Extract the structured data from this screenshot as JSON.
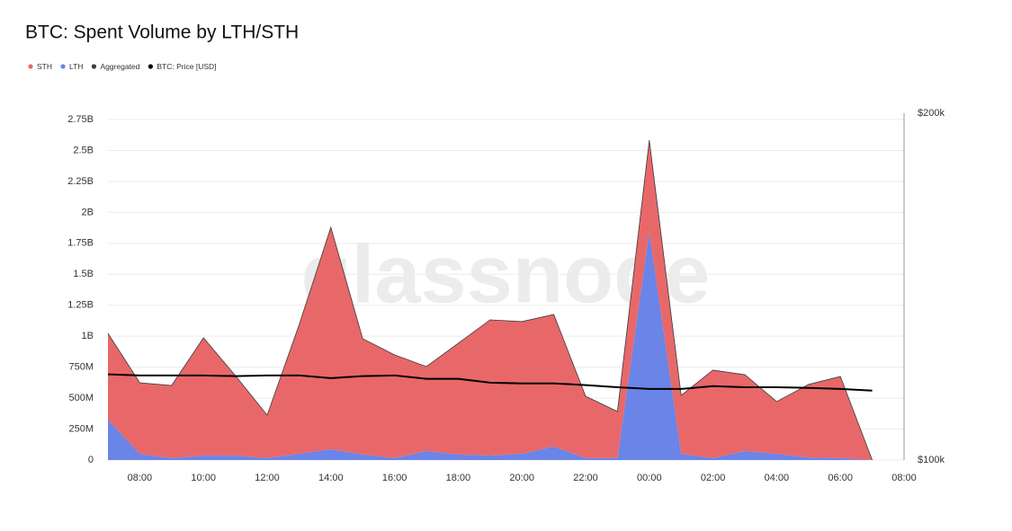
{
  "chart_data": {
    "type": "stacked-area",
    "title": "BTC: Spent Volume by LTH/STH",
    "watermark": "glassnode",
    "categories": [
      null,
      "08:00",
      null,
      "10:00",
      null,
      "12:00",
      null,
      "14:00",
      null,
      "16:00",
      null,
      "18:00",
      null,
      "20:00",
      null,
      "22:00",
      null,
      "00:00",
      null,
      "02:00",
      null,
      "04:00",
      null,
      "06:00",
      null,
      "08:00"
    ],
    "stacked": true,
    "grid": true,
    "legend": "top-left",
    "series": [
      {
        "name": "STH",
        "color": "#e8686a",
        "values": [
          696000000,
          574000000,
          587000000,
          952000000,
          647000000,
          348000000,
          1039000000,
          1792000000,
          936000000,
          834000000,
          682000000,
          899000000,
          1096000000,
          1068000000,
          1067000000,
          500000000,
          377000000,
          740000000,
          472000000,
          711000000,
          616000000,
          422000000,
          590000000,
          660000000,
          0,
          null
        ]
      },
      {
        "name": "LTH",
        "color": "#6a84e8",
        "values": [
          327000000,
          50000000,
          15000000,
          35000000,
          35000000,
          15000000,
          50000000,
          87000000,
          44000000,
          15000000,
          73000000,
          44000000,
          36000000,
          50000000,
          109000000,
          15000000,
          15000000,
          1843000000,
          50000000,
          15000000,
          73000000,
          50000000,
          20000000,
          15000000,
          0,
          null
        ]
      },
      {
        "name": "Aggregated",
        "color": "#3c3c3c"
      },
      {
        "name": "BTC: Price [USD]",
        "color": "#000000",
        "axis": "y2",
        "values": [
          124700,
          124400,
          124400,
          124400,
          124200,
          124400,
          124400,
          123600,
          124200,
          124400,
          123400,
          123400,
          122300,
          122100,
          122100,
          121600,
          121000,
          120500,
          120500,
          121300,
          121000,
          121000,
          120800,
          120500,
          120000,
          null
        ]
      }
    ],
    "ylim": [
      0,
      2750000000
    ],
    "yticks": [
      0,
      {
        "value": 250000000,
        "label": "250M"
      },
      {
        "value": 500000000,
        "label": "500M"
      },
      {
        "value": 750000000,
        "label": "750M"
      },
      {
        "value": 1000000000,
        "label": "1B"
      },
      {
        "value": 1250000000,
        "label": "1.25B"
      },
      {
        "value": 1500000000,
        "label": "1.5B"
      },
      {
        "value": 1750000000,
        "label": "1.75B"
      },
      {
        "value": 2000000000,
        "label": "2B"
      },
      {
        "value": 2250000000,
        "label": "2.25B"
      },
      {
        "value": 2500000000,
        "label": "2.5B"
      },
      {
        "value": 2750000000,
        "label": "2.75B"
      }
    ],
    "y2lim": [
      100000,
      200000
    ],
    "y2ticks": [
      {
        "value": 100000,
        "label": "$100k"
      },
      {
        "value": 200000,
        "label": "$200k"
      }
    ]
  }
}
